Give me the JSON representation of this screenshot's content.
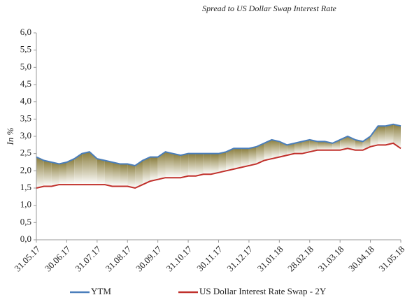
{
  "chart_data": {
    "type": "line",
    "title": "Spread to US Dollar Swap Interest Rate",
    "y_label": "In %",
    "categories": [
      "31.05.17",
      null,
      null,
      null,
      "30.06.17",
      null,
      null,
      null,
      "31.07.17",
      null,
      null,
      null,
      "31.08.17",
      null,
      null,
      null,
      "30.09.17",
      null,
      null,
      null,
      "31.10.17",
      null,
      null,
      null,
      "30.11.17",
      null,
      null,
      null,
      "31.12.17",
      null,
      null,
      null,
      "31.01.18",
      null,
      null,
      null,
      "28.02.18",
      null,
      null,
      null,
      "31.03.18",
      null,
      null,
      null,
      "30.04.18",
      null,
      null,
      null,
      "31.05.18"
    ],
    "series": [
      {
        "name": "YTM",
        "color": "#4a7ebb",
        "values": [
          2.4,
          2.3,
          2.25,
          2.2,
          2.25,
          2.35,
          2.5,
          2.55,
          2.35,
          2.3,
          2.25,
          2.2,
          2.2,
          2.15,
          2.3,
          2.4,
          2.4,
          2.55,
          2.5,
          2.45,
          2.5,
          2.5,
          2.5,
          2.5,
          2.5,
          2.55,
          2.65,
          2.65,
          2.65,
          2.7,
          2.8,
          2.9,
          2.85,
          2.75,
          2.8,
          2.85,
          2.9,
          2.85,
          2.85,
          2.8,
          2.9,
          3.0,
          2.9,
          2.85,
          3.0,
          3.3,
          3.3,
          3.35,
          3.3
        ]
      },
      {
        "name": "US Dollar Interest Rate Swap - 2Y",
        "color": "#c0302b",
        "values": [
          1.5,
          1.55,
          1.55,
          1.6,
          1.6,
          1.6,
          1.6,
          1.6,
          1.6,
          1.6,
          1.55,
          1.55,
          1.55,
          1.5,
          1.6,
          1.7,
          1.75,
          1.8,
          1.8,
          1.8,
          1.85,
          1.85,
          1.9,
          1.9,
          1.95,
          2.0,
          2.05,
          2.1,
          2.15,
          2.2,
          2.3,
          2.35,
          2.4,
          2.45,
          2.5,
          2.5,
          2.55,
          2.6,
          2.6,
          2.6,
          2.6,
          2.65,
          2.6,
          2.6,
          2.7,
          2.75,
          2.75,
          2.8,
          2.65
        ]
      }
    ],
    "fill_color": "#8a7d3c",
    "ylim": [
      0,
      6
    ],
    "yticks": [
      {
        "value": 0,
        "label": "0,0"
      },
      {
        "value": 0.5,
        "label": "0,5"
      },
      {
        "value": 1,
        "label": "1,0"
      },
      {
        "value": 1.5,
        "label": "1,5"
      },
      {
        "value": 2,
        "label": "2,0"
      },
      {
        "value": 2.5,
        "label": "2,5"
      },
      {
        "value": 3,
        "label": "3,0"
      },
      {
        "value": 3.5,
        "label": "3,5"
      },
      {
        "value": 4,
        "label": "4,0"
      },
      {
        "value": 4.5,
        "label": "4,5"
      },
      {
        "value": 5,
        "label": "5,0"
      },
      {
        "value": 5.5,
        "label": "5,5"
      },
      {
        "value": 6,
        "label": "6,0"
      }
    ],
    "grid": false,
    "legend": "bottom"
  }
}
